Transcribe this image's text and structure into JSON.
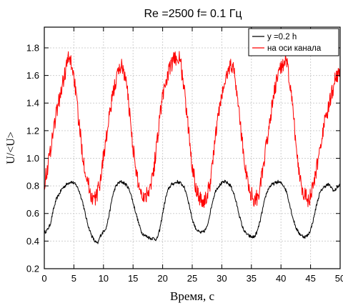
{
  "chart_data": {
    "type": "line",
    "title": "Re =2500   f= 0.1 Гц",
    "xlabel": "Время, с",
    "ylabel": "U/<U>",
    "xlim": [
      0,
      50
    ],
    "ylim": [
      0.2,
      1.95
    ],
    "x_ticks": [
      "0",
      "5",
      "10",
      "15",
      "20",
      "25",
      "30",
      "35",
      "40",
      "45",
      "50"
    ],
    "y_ticks": [
      "0.2",
      "0.4",
      "0.6",
      "0.8",
      "1.0",
      "1.2",
      "1.4",
      "1.6",
      "1.8"
    ],
    "grid": true,
    "legend_position": "top-right",
    "series": [
      {
        "name": "y =0.2 h",
        "color": "#000000",
        "x": [
          0,
          0.5,
          1,
          1.5,
          2,
          2.5,
          3,
          3.5,
          4,
          4.5,
          5,
          5.5,
          6,
          6.5,
          7,
          7.5,
          8,
          8.5,
          9,
          9.5,
          10,
          10.5,
          11,
          11.5,
          12,
          12.5,
          13,
          13.5,
          14,
          14.5,
          15,
          15.5,
          16,
          16.5,
          17,
          17.5,
          18,
          18.5,
          19,
          19.5,
          20,
          20.5,
          21,
          21.5,
          22,
          22.5,
          23,
          23.5,
          24,
          24.5,
          25,
          25.5,
          26,
          26.5,
          27,
          27.5,
          28,
          28.5,
          29,
          29.5,
          30,
          30.5,
          31,
          31.5,
          32,
          32.5,
          33,
          33.5,
          34,
          34.5,
          35,
          35.5,
          36,
          36.5,
          37,
          37.5,
          38,
          38.5,
          39,
          39.5,
          40,
          40.5,
          41,
          41.5,
          42,
          42.5,
          43,
          43.5,
          44,
          44.5,
          45,
          45.5,
          46,
          46.5,
          47,
          47.5,
          48,
          48.5,
          49,
          49.5,
          50
        ],
        "values": [
          0.46,
          0.48,
          0.52,
          0.62,
          0.7,
          0.74,
          0.78,
          0.8,
          0.82,
          0.83,
          0.82,
          0.8,
          0.75,
          0.68,
          0.58,
          0.5,
          0.44,
          0.4,
          0.38,
          0.44,
          0.47,
          0.5,
          0.6,
          0.72,
          0.79,
          0.82,
          0.83,
          0.82,
          0.8,
          0.76,
          0.68,
          0.6,
          0.52,
          0.46,
          0.44,
          0.43,
          0.42,
          0.42,
          0.41,
          0.48,
          0.6,
          0.71,
          0.78,
          0.81,
          0.82,
          0.83,
          0.82,
          0.8,
          0.75,
          0.66,
          0.56,
          0.5,
          0.47,
          0.46,
          0.47,
          0.5,
          0.6,
          0.7,
          0.77,
          0.8,
          0.82,
          0.83,
          0.82,
          0.8,
          0.75,
          0.67,
          0.58,
          0.5,
          0.46,
          0.44,
          0.43,
          0.43,
          0.47,
          0.55,
          0.65,
          0.74,
          0.79,
          0.81,
          0.82,
          0.83,
          0.82,
          0.8,
          0.75,
          0.66,
          0.57,
          0.5,
          0.46,
          0.44,
          0.43,
          0.44,
          0.48,
          0.56,
          0.66,
          0.74,
          0.78,
          0.8,
          0.81,
          0.79,
          0.76,
          0.79,
          0.81
        ]
      },
      {
        "name": "на оси канала",
        "color": "#ff0000",
        "x": [
          0,
          0.5,
          1,
          1.5,
          2,
          2.5,
          3,
          3.5,
          4,
          4.5,
          5,
          5.5,
          6,
          6.5,
          7,
          7.5,
          8,
          8.5,
          9,
          9.5,
          10,
          10.5,
          11,
          11.5,
          12,
          12.5,
          13,
          13.5,
          14,
          14.5,
          15,
          15.5,
          16,
          16.5,
          17,
          17.5,
          18,
          18.5,
          19,
          19.5,
          20,
          20.5,
          21,
          21.5,
          22,
          22.5,
          23,
          23.5,
          24,
          24.5,
          25,
          25.5,
          26,
          26.5,
          27,
          27.5,
          28,
          28.5,
          29,
          29.5,
          30,
          30.5,
          31,
          31.5,
          32,
          32.5,
          33,
          33.5,
          34,
          34.5,
          35,
          35.5,
          36,
          36.5,
          37,
          37.5,
          38,
          38.5,
          39,
          39.5,
          40,
          40.5,
          41,
          41.5,
          42,
          42.5,
          43,
          43.5,
          44,
          44.5,
          45,
          45.5,
          46,
          46.5,
          47,
          47.5,
          48,
          48.5,
          49,
          49.5,
          50
        ],
        "values": [
          0.82,
          0.92,
          1.05,
          1.2,
          1.32,
          1.42,
          1.52,
          1.62,
          1.72,
          1.7,
          1.6,
          1.4,
          1.2,
          1.02,
          0.9,
          0.8,
          0.72,
          0.7,
          0.75,
          0.85,
          1.02,
          1.15,
          1.3,
          1.44,
          1.55,
          1.62,
          1.68,
          1.62,
          1.5,
          1.3,
          1.08,
          0.9,
          0.8,
          0.74,
          0.72,
          0.76,
          0.82,
          0.92,
          1.1,
          1.3,
          1.45,
          1.55,
          1.62,
          1.68,
          1.72,
          1.74,
          1.7,
          1.55,
          1.35,
          1.15,
          0.95,
          0.82,
          0.74,
          0.7,
          0.68,
          0.72,
          0.82,
          1.0,
          1.18,
          1.34,
          1.45,
          1.55,
          1.62,
          1.68,
          1.65,
          1.5,
          1.3,
          1.1,
          0.92,
          0.8,
          0.74,
          0.7,
          0.72,
          0.8,
          0.92,
          1.08,
          1.24,
          1.38,
          1.5,
          1.6,
          1.66,
          1.7,
          1.68,
          1.55,
          1.35,
          1.12,
          0.92,
          0.8,
          0.74,
          0.7,
          0.72,
          0.8,
          0.92,
          1.05,
          1.18,
          1.28,
          1.36,
          1.45,
          1.55,
          1.6,
          1.65
        ]
      }
    ]
  }
}
